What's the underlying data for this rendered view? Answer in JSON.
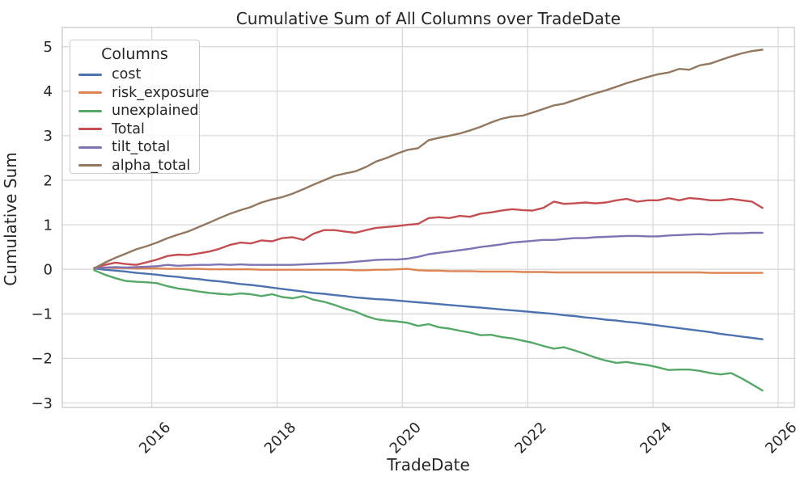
{
  "chart_data": {
    "type": "line",
    "title": "Cumulative Sum of All Columns over TradeDate",
    "xlabel": "TradeDate",
    "ylabel": "Cumulative Sum",
    "legend_title": "Columns",
    "legend_position": "upper left",
    "grid": true,
    "background": "#ffffff",
    "grid_color": "#d9d9d9",
    "spine_color": "#cccccc",
    "text_color": "#262626",
    "xlim": [
      2014.57,
      2026.26
    ],
    "ylim": [
      -3.1,
      5.43
    ],
    "xticks": {
      "values": [
        2016,
        2018,
        2020,
        2022,
        2024,
        2026
      ],
      "labels": [
        "2016",
        "2018",
        "2020",
        "2022",
        "2024",
        "2026"
      ]
    },
    "yticks": {
      "values": [
        5,
        4,
        3,
        2,
        1,
        0,
        -1,
        -2,
        -3
      ],
      "labels": [
        "5",
        "4",
        "3",
        "2",
        "1",
        "0",
        "−1",
        "−2",
        "−3"
      ]
    },
    "x_units": "decimal year (TradeDate)",
    "x": [
      2015.08,
      2015.25,
      2015.42,
      2015.58,
      2015.75,
      2015.92,
      2016.08,
      2016.25,
      2016.42,
      2016.58,
      2016.75,
      2016.92,
      2017.08,
      2017.25,
      2017.42,
      2017.58,
      2017.75,
      2017.92,
      2018.08,
      2018.25,
      2018.42,
      2018.58,
      2018.75,
      2018.92,
      2019.08,
      2019.25,
      2019.42,
      2019.58,
      2019.75,
      2019.92,
      2020.08,
      2020.25,
      2020.42,
      2020.58,
      2020.75,
      2020.92,
      2021.08,
      2021.25,
      2021.42,
      2021.58,
      2021.75,
      2021.92,
      2022.08,
      2022.25,
      2022.42,
      2022.58,
      2022.75,
      2022.92,
      2023.08,
      2023.25,
      2023.42,
      2023.58,
      2023.75,
      2023.92,
      2024.08,
      2024.25,
      2024.42,
      2024.58,
      2024.75,
      2024.92,
      2025.08,
      2025.25,
      2025.42,
      2025.58,
      2025.75
    ],
    "series": [
      {
        "name": "cost",
        "color": "#4C72B0",
        "values": [
          0.02,
          -0.01,
          -0.03,
          -0.05,
          -0.08,
          -0.1,
          -0.12,
          -0.15,
          -0.17,
          -0.2,
          -0.22,
          -0.25,
          -0.27,
          -0.3,
          -0.33,
          -0.35,
          -0.38,
          -0.41,
          -0.44,
          -0.47,
          -0.5,
          -0.53,
          -0.55,
          -0.58,
          -0.6,
          -0.63,
          -0.65,
          -0.67,
          -0.68,
          -0.7,
          -0.72,
          -0.74,
          -0.76,
          -0.78,
          -0.8,
          -0.82,
          -0.84,
          -0.86,
          -0.88,
          -0.9,
          -0.92,
          -0.94,
          -0.96,
          -0.98,
          -1.0,
          -1.03,
          -1.05,
          -1.08,
          -1.1,
          -1.13,
          -1.15,
          -1.18,
          -1.2,
          -1.23,
          -1.26,
          -1.29,
          -1.32,
          -1.35,
          -1.38,
          -1.41,
          -1.45,
          -1.48,
          -1.51,
          -1.54,
          -1.57
        ]
      },
      {
        "name": "risk_exposure",
        "color": "#DD8452",
        "values": [
          0.03,
          0.04,
          0.03,
          0.03,
          0.02,
          0.02,
          0.02,
          0.01,
          0.01,
          0.01,
          0.01,
          0.0,
          0.0,
          0.0,
          0.0,
          0.0,
          -0.01,
          -0.01,
          -0.01,
          -0.01,
          -0.01,
          -0.01,
          -0.01,
          -0.01,
          -0.01,
          -0.02,
          -0.02,
          -0.01,
          -0.01,
          0.0,
          0.01,
          -0.02,
          -0.03,
          -0.03,
          -0.04,
          -0.04,
          -0.04,
          -0.05,
          -0.05,
          -0.05,
          -0.05,
          -0.06,
          -0.06,
          -0.06,
          -0.07,
          -0.07,
          -0.07,
          -0.07,
          -0.07,
          -0.07,
          -0.07,
          -0.07,
          -0.07,
          -0.07,
          -0.07,
          -0.07,
          -0.07,
          -0.07,
          -0.07,
          -0.08,
          -0.08,
          -0.08,
          -0.08,
          -0.08,
          -0.08
        ]
      },
      {
        "name": "unexplained",
        "color": "#55A868",
        "values": [
          -0.02,
          -0.12,
          -0.2,
          -0.26,
          -0.28,
          -0.29,
          -0.31,
          -0.38,
          -0.43,
          -0.46,
          -0.5,
          -0.53,
          -0.55,
          -0.57,
          -0.54,
          -0.56,
          -0.6,
          -0.56,
          -0.62,
          -0.65,
          -0.6,
          -0.68,
          -0.73,
          -0.8,
          -0.88,
          -0.95,
          -1.05,
          -1.12,
          -1.15,
          -1.17,
          -1.2,
          -1.27,
          -1.23,
          -1.3,
          -1.33,
          -1.38,
          -1.42,
          -1.48,
          -1.47,
          -1.52,
          -1.55,
          -1.6,
          -1.65,
          -1.72,
          -1.78,
          -1.75,
          -1.82,
          -1.9,
          -1.98,
          -2.05,
          -2.1,
          -2.08,
          -2.12,
          -2.15,
          -2.2,
          -2.26,
          -2.25,
          -2.25,
          -2.28,
          -2.33,
          -2.36,
          -2.33,
          -2.45,
          -2.58,
          -2.72
        ]
      },
      {
        "name": "Total",
        "color": "#C44E52",
        "values": [
          0.03,
          0.1,
          0.15,
          0.12,
          0.1,
          0.16,
          0.22,
          0.3,
          0.33,
          0.32,
          0.36,
          0.4,
          0.46,
          0.55,
          0.6,
          0.58,
          0.65,
          0.63,
          0.7,
          0.72,
          0.66,
          0.8,
          0.88,
          0.88,
          0.85,
          0.82,
          0.88,
          0.93,
          0.95,
          0.97,
          1.0,
          1.02,
          1.15,
          1.17,
          1.15,
          1.2,
          1.18,
          1.25,
          1.28,
          1.32,
          1.35,
          1.33,
          1.32,
          1.38,
          1.52,
          1.47,
          1.48,
          1.5,
          1.48,
          1.5,
          1.55,
          1.58,
          1.52,
          1.55,
          1.55,
          1.6,
          1.55,
          1.6,
          1.58,
          1.55,
          1.55,
          1.58,
          1.55,
          1.52,
          1.38
        ]
      },
      {
        "name": "tilt_total",
        "color": "#8172B3",
        "values": [
          0.02,
          0.04,
          0.05,
          0.04,
          0.05,
          0.06,
          0.07,
          0.1,
          0.08,
          0.09,
          0.1,
          0.1,
          0.11,
          0.1,
          0.11,
          0.1,
          0.1,
          0.1,
          0.1,
          0.1,
          0.11,
          0.12,
          0.13,
          0.14,
          0.15,
          0.17,
          0.19,
          0.21,
          0.22,
          0.22,
          0.24,
          0.28,
          0.34,
          0.37,
          0.4,
          0.43,
          0.46,
          0.5,
          0.53,
          0.56,
          0.6,
          0.62,
          0.64,
          0.66,
          0.66,
          0.68,
          0.7,
          0.7,
          0.72,
          0.73,
          0.74,
          0.75,
          0.75,
          0.74,
          0.74,
          0.76,
          0.77,
          0.78,
          0.79,
          0.78,
          0.8,
          0.81,
          0.81,
          0.82,
          0.82
        ]
      },
      {
        "name": "alpha_total",
        "color": "#937860",
        "values": [
          0.02,
          0.15,
          0.26,
          0.35,
          0.45,
          0.52,
          0.6,
          0.7,
          0.78,
          0.85,
          0.95,
          1.05,
          1.15,
          1.25,
          1.33,
          1.4,
          1.5,
          1.57,
          1.62,
          1.7,
          1.8,
          1.9,
          2.0,
          2.1,
          2.15,
          2.2,
          2.3,
          2.42,
          2.5,
          2.6,
          2.68,
          2.72,
          2.9,
          2.95,
          3.0,
          3.05,
          3.12,
          3.2,
          3.3,
          3.38,
          3.43,
          3.45,
          3.52,
          3.6,
          3.68,
          3.72,
          3.8,
          3.88,
          3.95,
          4.02,
          4.1,
          4.18,
          4.25,
          4.32,
          4.38,
          4.42,
          4.5,
          4.48,
          4.58,
          4.62,
          4.7,
          4.78,
          4.85,
          4.9,
          4.93
        ]
      }
    ]
  }
}
